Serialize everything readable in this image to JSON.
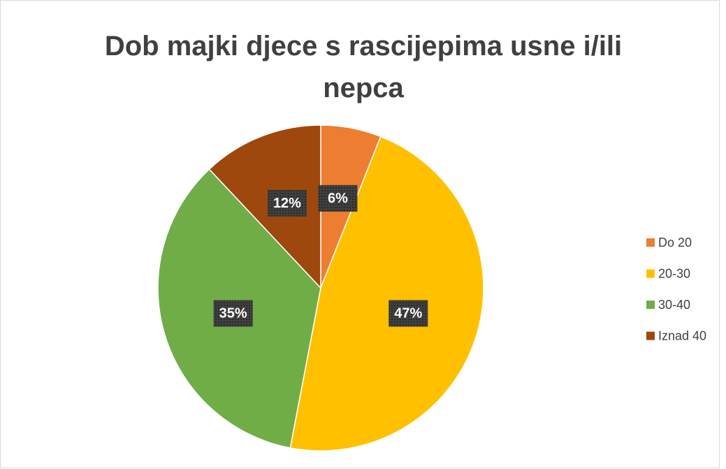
{
  "chart_data": {
    "type": "pie",
    "title": "Dob majki djece s rascijepima usne i/ili nepca",
    "categories": [
      "Do 20",
      "20-30",
      "30-40",
      "Iznad 40"
    ],
    "values": [
      6,
      47,
      35,
      12
    ],
    "value_labels": [
      "6%",
      "47%",
      "35%",
      "12%"
    ],
    "colors": [
      "#ED7D31",
      "#FFC000",
      "#70AD47",
      "#9E480E"
    ],
    "legend": "right"
  }
}
